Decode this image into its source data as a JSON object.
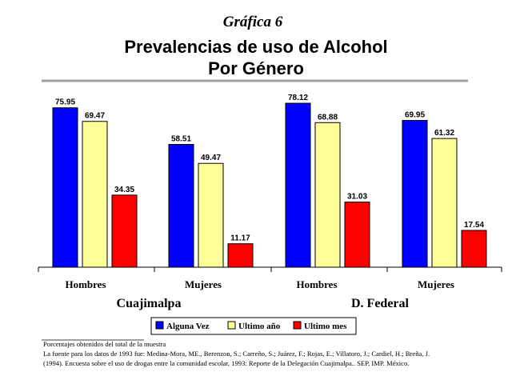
{
  "header": {
    "supertitle": "Gráfica 6",
    "title_line1": "Prevalencias de uso de Alcohol",
    "title_line2": "Por Género"
  },
  "chart_data": {
    "type": "bar",
    "groups": [
      "Cuajimalpa",
      "D. Federal"
    ],
    "categories": [
      "Hombres",
      "Mujeres",
      "Hombres",
      "Mujeres"
    ],
    "series": [
      {
        "name": "Alguna Vez",
        "color": "#0000ff",
        "values": [
          75.95,
          58.51,
          78.12,
          69.95
        ]
      },
      {
        "name": "Ultimo año",
        "color": "#ffff99",
        "values": [
          69.47,
          49.47,
          68.88,
          61.32
        ]
      },
      {
        "name": "Ultimo mes",
        "color": "#ff0000",
        "values": [
          34.35,
          11.17,
          31.03,
          17.54
        ]
      }
    ],
    "ylim": [
      0,
      85
    ],
    "legend_position": "bottom",
    "grid": false
  },
  "footer": {
    "note1": "Porcentajes obtenidos del total de la muestra",
    "note2": "La fuente para los datos de 1993 fue: Medina-Mora, ME., Berenzon, S.; Carreño, S.; Juárez, F.; Rojas, E.; Villatoro, J.; Cardiel, H.; Breña, J.",
    "note3": "(1994). Encuesta sobre el uso de drogas entre la comunidad escolar, 1993: Reporte de la Delegación Cuajimalpa.. SEP, IMP. México."
  }
}
